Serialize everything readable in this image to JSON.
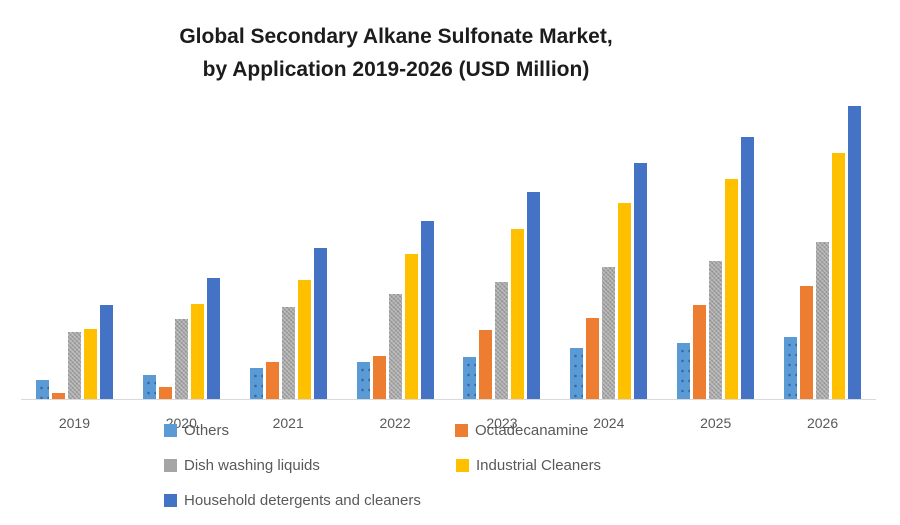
{
  "title": {
    "line1": "Global Secondary Alkane Sulfonate Market,",
    "line2": "by Application 2019-2026 (USD Million)"
  },
  "chart_data": {
    "type": "bar",
    "title": "Global Secondary Alkane Sulfonate Market, by Application 2019-2026 (USD Million)",
    "xlabel": "",
    "ylabel": "",
    "categories": [
      "2019",
      "2020",
      "2021",
      "2022",
      "2023",
      "2024",
      "2025",
      "2026"
    ],
    "series": [
      {
        "name": "Others",
        "color": "#5B9BD5",
        "pattern": "dots",
        "values": [
          19,
          24,
          31,
          37,
          42,
          51,
          56,
          62
        ]
      },
      {
        "name": "Octadecanamine",
        "color": "#ED7D31",
        "pattern": "solid",
        "values": [
          6,
          12,
          37,
          43,
          69,
          81,
          94,
          113
        ]
      },
      {
        "name": "Dish washing liquids",
        "color": "#A5A5A5",
        "pattern": "dither",
        "values": [
          67,
          80,
          92,
          105,
          117,
          132,
          138,
          157
        ]
      },
      {
        "name": "Industrial Cleaners",
        "color": "#FFC000",
        "pattern": "solid",
        "values": [
          70,
          95,
          119,
          145,
          170,
          196,
          220,
          246
        ]
      },
      {
        "name": "Household detergents and cleaners",
        "color": "#4472C4",
        "pattern": "solid",
        "values": [
          94,
          121,
          151,
          178,
          207,
          236,
          262,
          293
        ]
      }
    ],
    "value_units": "relative height units (no y-axis scale shown in chart)",
    "ylim": [
      0,
      300
    ],
    "y_axis_visible": false,
    "grid": false,
    "axis_line_color": "#D9D9D9",
    "label_text_color": "#595959",
    "legend_position": "bottom-left, three rows, overlapping the x-axis year labels"
  }
}
